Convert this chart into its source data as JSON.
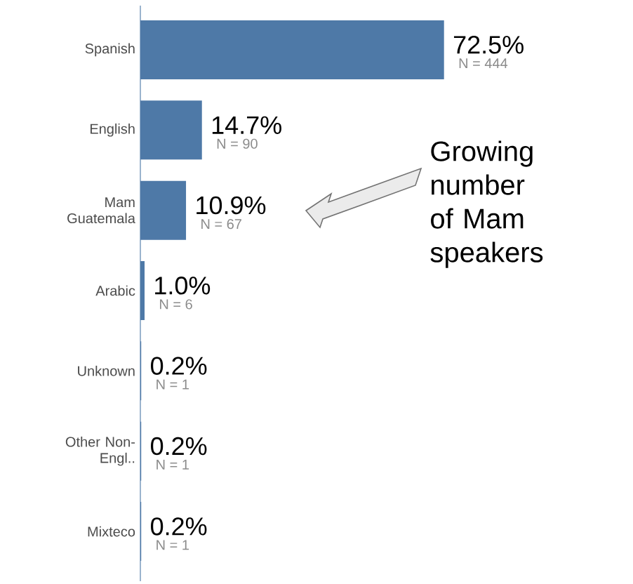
{
  "chart_data": {
    "type": "bar",
    "orientation": "horizontal",
    "categories": [
      "Spanish",
      "English",
      "Mam Guatemala",
      "Arabic",
      "Unknown",
      "Other Non-Engl..",
      "Mixteco"
    ],
    "values": [
      72.5,
      14.7,
      10.9,
      1.0,
      0.2,
      0.2,
      0.2
    ],
    "color": "#4e79a7",
    "value_labels": [
      "72.5%",
      "14.7%",
      "10.9%",
      "1.0%",
      "0.2%",
      "0.2%",
      "0.2%"
    ],
    "annotations": [
      {
        "text": "N = 444",
        "x": 72.5,
        "y": "Spanish"
      },
      {
        "text": "N = 90",
        "x": 14.7,
        "y": "English"
      },
      {
        "text": "N = 67",
        "x": 10.9,
        "y": "Mam Guatemala"
      },
      {
        "text": "N = 6",
        "x": 1.0,
        "y": "Arabic"
      },
      {
        "text": "N = 1",
        "x": 0.2,
        "y": "Unknown"
      },
      {
        "text": "N = 1",
        "x": 0.2,
        "y": "Other Non-Engl.."
      },
      {
        "text": "N = 1",
        "x": 0.2,
        "y": "Mixteco"
      },
      "Growing number of Mam speakers"
    ]
  }
}
